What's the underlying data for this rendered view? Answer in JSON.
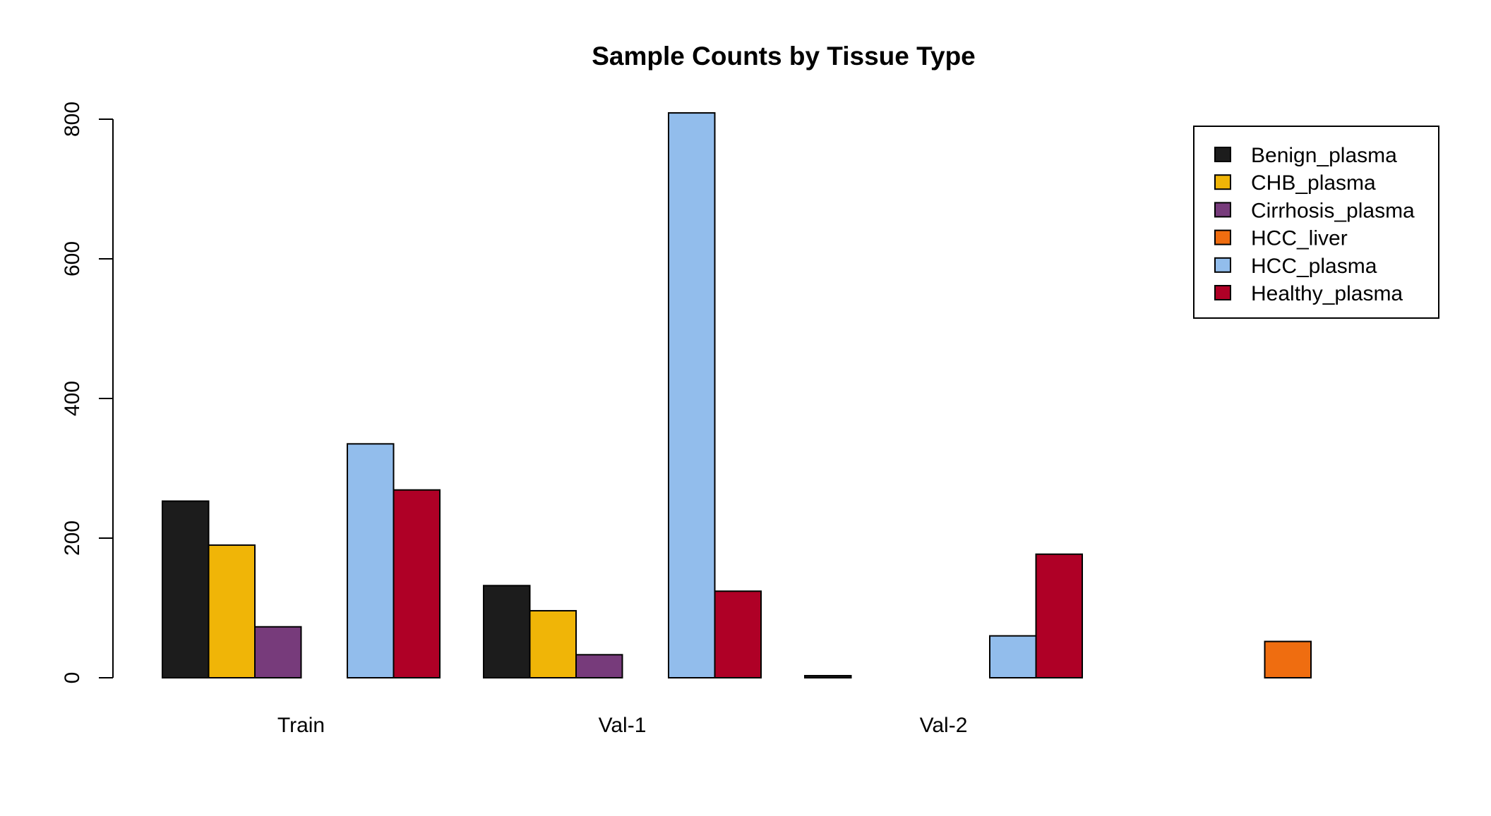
{
  "chart_data": {
    "type": "bar",
    "title": "Sample Counts by Tissue Type",
    "xlabel": "",
    "ylabel": "",
    "ylim": [
      0,
      800
    ],
    "yticks": [
      0,
      200,
      400,
      600,
      800
    ],
    "grid": false,
    "legend_position": "top-right",
    "categories": [
      "Train",
      "Val-1",
      "Val-2",
      ""
    ],
    "series": [
      {
        "name": "Benign_plasma",
        "color": "#1c1c1c",
        "values": [
          253,
          132,
          3,
          0
        ]
      },
      {
        "name": "CHB_plasma",
        "color": "#f0b507",
        "values": [
          190,
          96,
          0,
          0
        ]
      },
      {
        "name": "Cirrhosis_plasma",
        "color": "#773b7b",
        "values": [
          73,
          33,
          0,
          0
        ]
      },
      {
        "name": "HCC_liver",
        "color": "#ef6d10",
        "values": [
          0,
          0,
          0,
          52
        ]
      },
      {
        "name": "HCC_plasma",
        "color": "#92bdec",
        "values": [
          335,
          809,
          60,
          0
        ]
      },
      {
        "name": "Healthy_plasma",
        "color": "#af0026",
        "values": [
          269,
          124,
          177,
          0
        ]
      }
    ]
  }
}
